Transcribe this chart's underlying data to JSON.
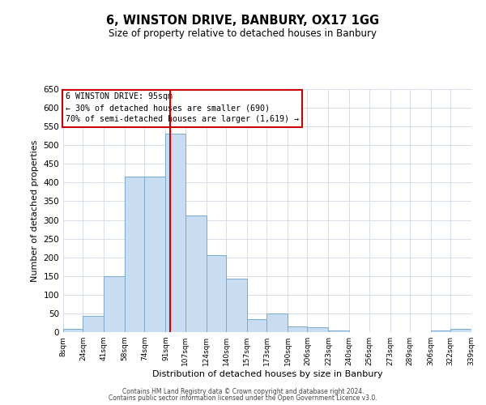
{
  "title": "6, WINSTON DRIVE, BANBURY, OX17 1GG",
  "subtitle": "Size of property relative to detached houses in Banbury",
  "xlabel": "Distribution of detached houses by size in Banbury",
  "ylabel": "Number of detached properties",
  "bar_color": "#c8ddf2",
  "bar_edge_color": "#7aaad0",
  "background_color": "#ffffff",
  "grid_color": "#d0d9e8",
  "annotation_box_color": "#cc0000",
  "vline_color": "#cc0000",
  "annotation_line1": "6 WINSTON DRIVE: 95sqm",
  "annotation_line2": "← 30% of detached houses are smaller (690)",
  "annotation_line3": "70% of semi-detached houses are larger (1,619) →",
  "vline_x": 95,
  "bin_edges": [
    8,
    24,
    41,
    58,
    74,
    91,
    107,
    124,
    140,
    157,
    173,
    190,
    206,
    223,
    240,
    256,
    273,
    289,
    306,
    322,
    339
  ],
  "bin_labels": [
    "8sqm",
    "24sqm",
    "41sqm",
    "58sqm",
    "74sqm",
    "91sqm",
    "107sqm",
    "124sqm",
    "140sqm",
    "157sqm",
    "173sqm",
    "190sqm",
    "206sqm",
    "223sqm",
    "240sqm",
    "256sqm",
    "273sqm",
    "289sqm",
    "306sqm",
    "322sqm",
    "339sqm"
  ],
  "counts": [
    8,
    44,
    150,
    417,
    417,
    530,
    312,
    205,
    144,
    35,
    49,
    15,
    14,
    5,
    0,
    0,
    0,
    0,
    5,
    8
  ],
  "ylim": [
    0,
    650
  ],
  "yticks": [
    0,
    50,
    100,
    150,
    200,
    250,
    300,
    350,
    400,
    450,
    500,
    550,
    600,
    650
  ],
  "footer1": "Contains HM Land Registry data © Crown copyright and database right 2024.",
  "footer2": "Contains public sector information licensed under the Open Government Licence v3.0."
}
